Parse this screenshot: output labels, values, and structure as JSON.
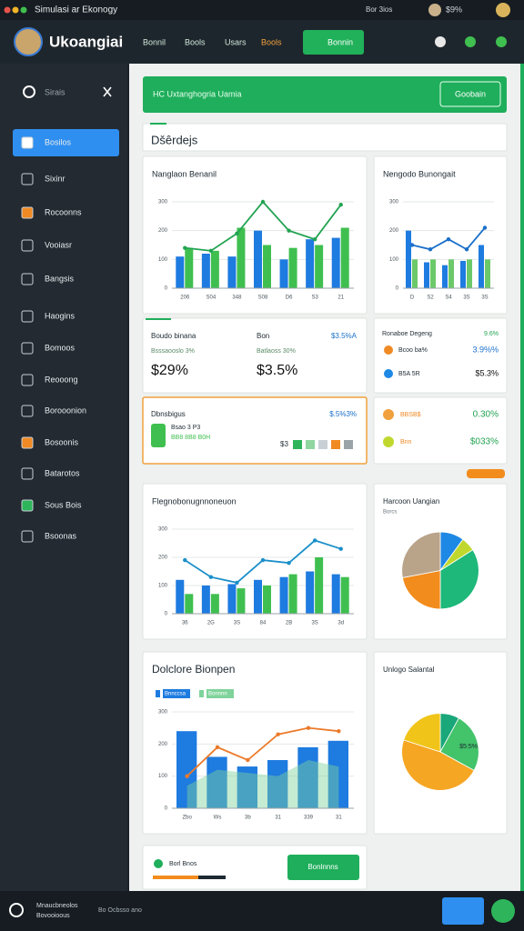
{
  "window": {
    "title": "Simulasi ar Ekonogy",
    "status": [
      "Bor 3ios",
      "$9%"
    ]
  },
  "header": {
    "brand": "Ukoangiai",
    "nav": [
      "Bonnil",
      "Bools",
      "Usars",
      "Bools"
    ],
    "button": "Bonnin"
  },
  "sidebar": {
    "search": "Sirais",
    "items": [
      "Bosilos",
      "Sixinr",
      "Rocoonns",
      "Vooiasr",
      "Bangsis",
      "Haogins",
      "Bomoos",
      "Reooong",
      "Borooonion",
      "Bosoonis",
      "Batarotos",
      "Sous Bois",
      "Bsoonas"
    ]
  },
  "banner": {
    "text": "HC Uxtanghogria Uamia",
    "button": "Goobain"
  },
  "section_title": "Dšêrdejs",
  "stats": {
    "badge": "$3.5%A",
    "items": [
      {
        "title": "Boudo binana",
        "sub": "Bsssaooslo 3%",
        "value": "$29%"
      },
      {
        "title": "Bon",
        "sub": "Batlaoss 30%",
        "value": "$3.5%"
      }
    ]
  },
  "list": {
    "title": "Ronaboe Degeng",
    "badge": "9.6%",
    "rows": [
      {
        "label": "Bcoo ba%",
        "value": "3.9%%"
      },
      {
        "label": "B5A 5R",
        "value": "$5.3%"
      }
    ]
  },
  "highlight": {
    "title": "Dbnsbigus",
    "badge": "$.5%3%",
    "lines": [
      "Bsao 3 P3",
      "BB8 8B8 B0H"
    ],
    "tag": "$3"
  },
  "mini": {
    "rows": [
      {
        "label": "BBSB$",
        "value": "0.30%"
      },
      {
        "label": "Bnn",
        "value": "$033%"
      }
    ]
  },
  "chart_data": [
    {
      "type": "combo",
      "title": "Nanglaon Benanil",
      "ylim": [
        0,
        300
      ],
      "yticks": [
        0,
        100,
        200,
        300
      ],
      "categories": [
        "206",
        "S04",
        "348",
        "S08",
        "D6",
        "S3",
        "21"
      ],
      "series": [
        {
          "color": "#1e7be0",
          "values": [
            110,
            120,
            110,
            200,
            100,
            170,
            175
          ]
        },
        {
          "color": "#3fbf4f",
          "values": [
            140,
            130,
            210,
            150,
            140,
            150,
            210
          ]
        },
        {
          "type": "line",
          "color": "#23a352",
          "values": [
            140,
            130,
            190,
            300,
            200,
            170,
            290
          ]
        }
      ]
    },
    {
      "type": "combo",
      "title": "Nengodo Bunongait",
      "ylim": [
        0,
        300
      ],
      "yticks": [
        0,
        100,
        200,
        300
      ],
      "categories": [
        "D",
        "S2",
        "S4",
        "3S",
        "3S"
      ],
      "series": [
        {
          "color": "#1e7be0",
          "values": [
            200,
            90,
            80,
            95,
            150
          ]
        },
        {
          "color": "#6cc96a",
          "values": [
            100,
            100,
            100,
            100,
            100
          ]
        },
        {
          "type": "line",
          "color": "#1a6fc9",
          "values": [
            150,
            135,
            170,
            135,
            210
          ]
        }
      ]
    },
    {
      "type": "combo",
      "title": "Flegnobonugnnoneuon",
      "ylim": [
        0,
        300
      ],
      "yticks": [
        0,
        100,
        200,
        300
      ],
      "categories": [
        "36",
        "2G",
        "3S",
        "84",
        "2B",
        "3S",
        "3d"
      ],
      "series": [
        {
          "color": "#1e7be0",
          "values": [
            120,
            100,
            105,
            120,
            130,
            150,
            140
          ]
        },
        {
          "color": "#3fbf4f",
          "values": [
            70,
            70,
            90,
            100,
            140,
            200,
            130
          ]
        },
        {
          "type": "line",
          "color": "#1a8fc9",
          "values": [
            190,
            130,
            110,
            190,
            180,
            260,
            230
          ]
        }
      ]
    },
    {
      "type": "pie",
      "title": "Harcoon Uangian",
      "subtitle": "Borcs",
      "values": [
        10,
        6,
        34,
        22,
        28
      ],
      "colors": [
        "#1e88e5",
        "#c0d82e",
        "#1db87a",
        "#f28c1c",
        "#b9a48a"
      ]
    },
    {
      "type": "combo",
      "title": "Dolclore Bionpen",
      "legend": true,
      "ylim": [
        0,
        300
      ],
      "yticks": [
        0,
        100,
        200,
        300
      ],
      "categories": [
        "Zbo",
        "Ws",
        "3b",
        "31",
        "339",
        "31"
      ],
      "series": [
        {
          "name": "Bnnccsa",
          "color": "#1e7be0",
          "values": [
            240,
            160,
            130,
            150,
            190,
            210
          ]
        },
        {
          "name": "Bonnnn",
          "type": "area",
          "color": "#7fd39b",
          "values": [
            70,
            120,
            110,
            100,
            150,
            130
          ]
        },
        {
          "type": "line",
          "color": "#ec7a2a",
          "values": [
            100,
            190,
            150,
            230,
            250,
            240
          ]
        }
      ]
    },
    {
      "type": "pie",
      "title": "Unlogo Salantal",
      "label": "$5:5%",
      "values": [
        8,
        25,
        47,
        20
      ],
      "colors": [
        "#1aa77a",
        "#43c36a",
        "#f5a623",
        "#f0c419"
      ]
    }
  ],
  "bottom": {
    "text": "Borl Bnos",
    "button": "Bonlnnns"
  },
  "footer": {
    "lines": [
      "Mnaucbneolos",
      "Bovooioous"
    ],
    "note": "Bo Ocbsso ano"
  }
}
